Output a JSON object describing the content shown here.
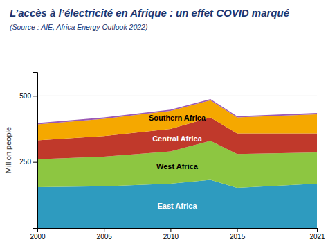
{
  "chart_data": {
    "type": "area",
    "stacked": true,
    "title": "L’accès à l’électricité en Afrique : un effet COVID marqué",
    "subtitle": "(Source : AIE, Africa Energy Outlook 2022)",
    "ylabel": "Million people",
    "x": [
      2000,
      2005,
      2010,
      2013,
      2015,
      2021
    ],
    "series": [
      {
        "name": "East Africa",
        "color": "#2e9bbf",
        "values": [
          155,
          158,
          168,
          182,
          152,
          168
        ]
      },
      {
        "name": "West Africa",
        "color": "#8dc641",
        "values": [
          105,
          112,
          122,
          148,
          128,
          118
        ]
      },
      {
        "name": "Central Africa",
        "color": "#c0392b",
        "values": [
          72,
          78,
          85,
          88,
          78,
          72
        ]
      },
      {
        "name": "Southern Africa",
        "color": "#f5a800",
        "values": [
          60,
          65,
          68,
          65,
          60,
          72
        ]
      },
      {
        "color": "#9b59b6",
        "values": [
          5,
          5,
          5,
          5,
          5,
          5
        ]
      }
    ],
    "xlim": [
      2000,
      2021
    ],
    "ylim": [
      0,
      590
    ],
    "xticks": [
      2000,
      2005,
      2010,
      2015,
      2021
    ],
    "yticks": [
      250,
      500
    ],
    "grid": true
  }
}
